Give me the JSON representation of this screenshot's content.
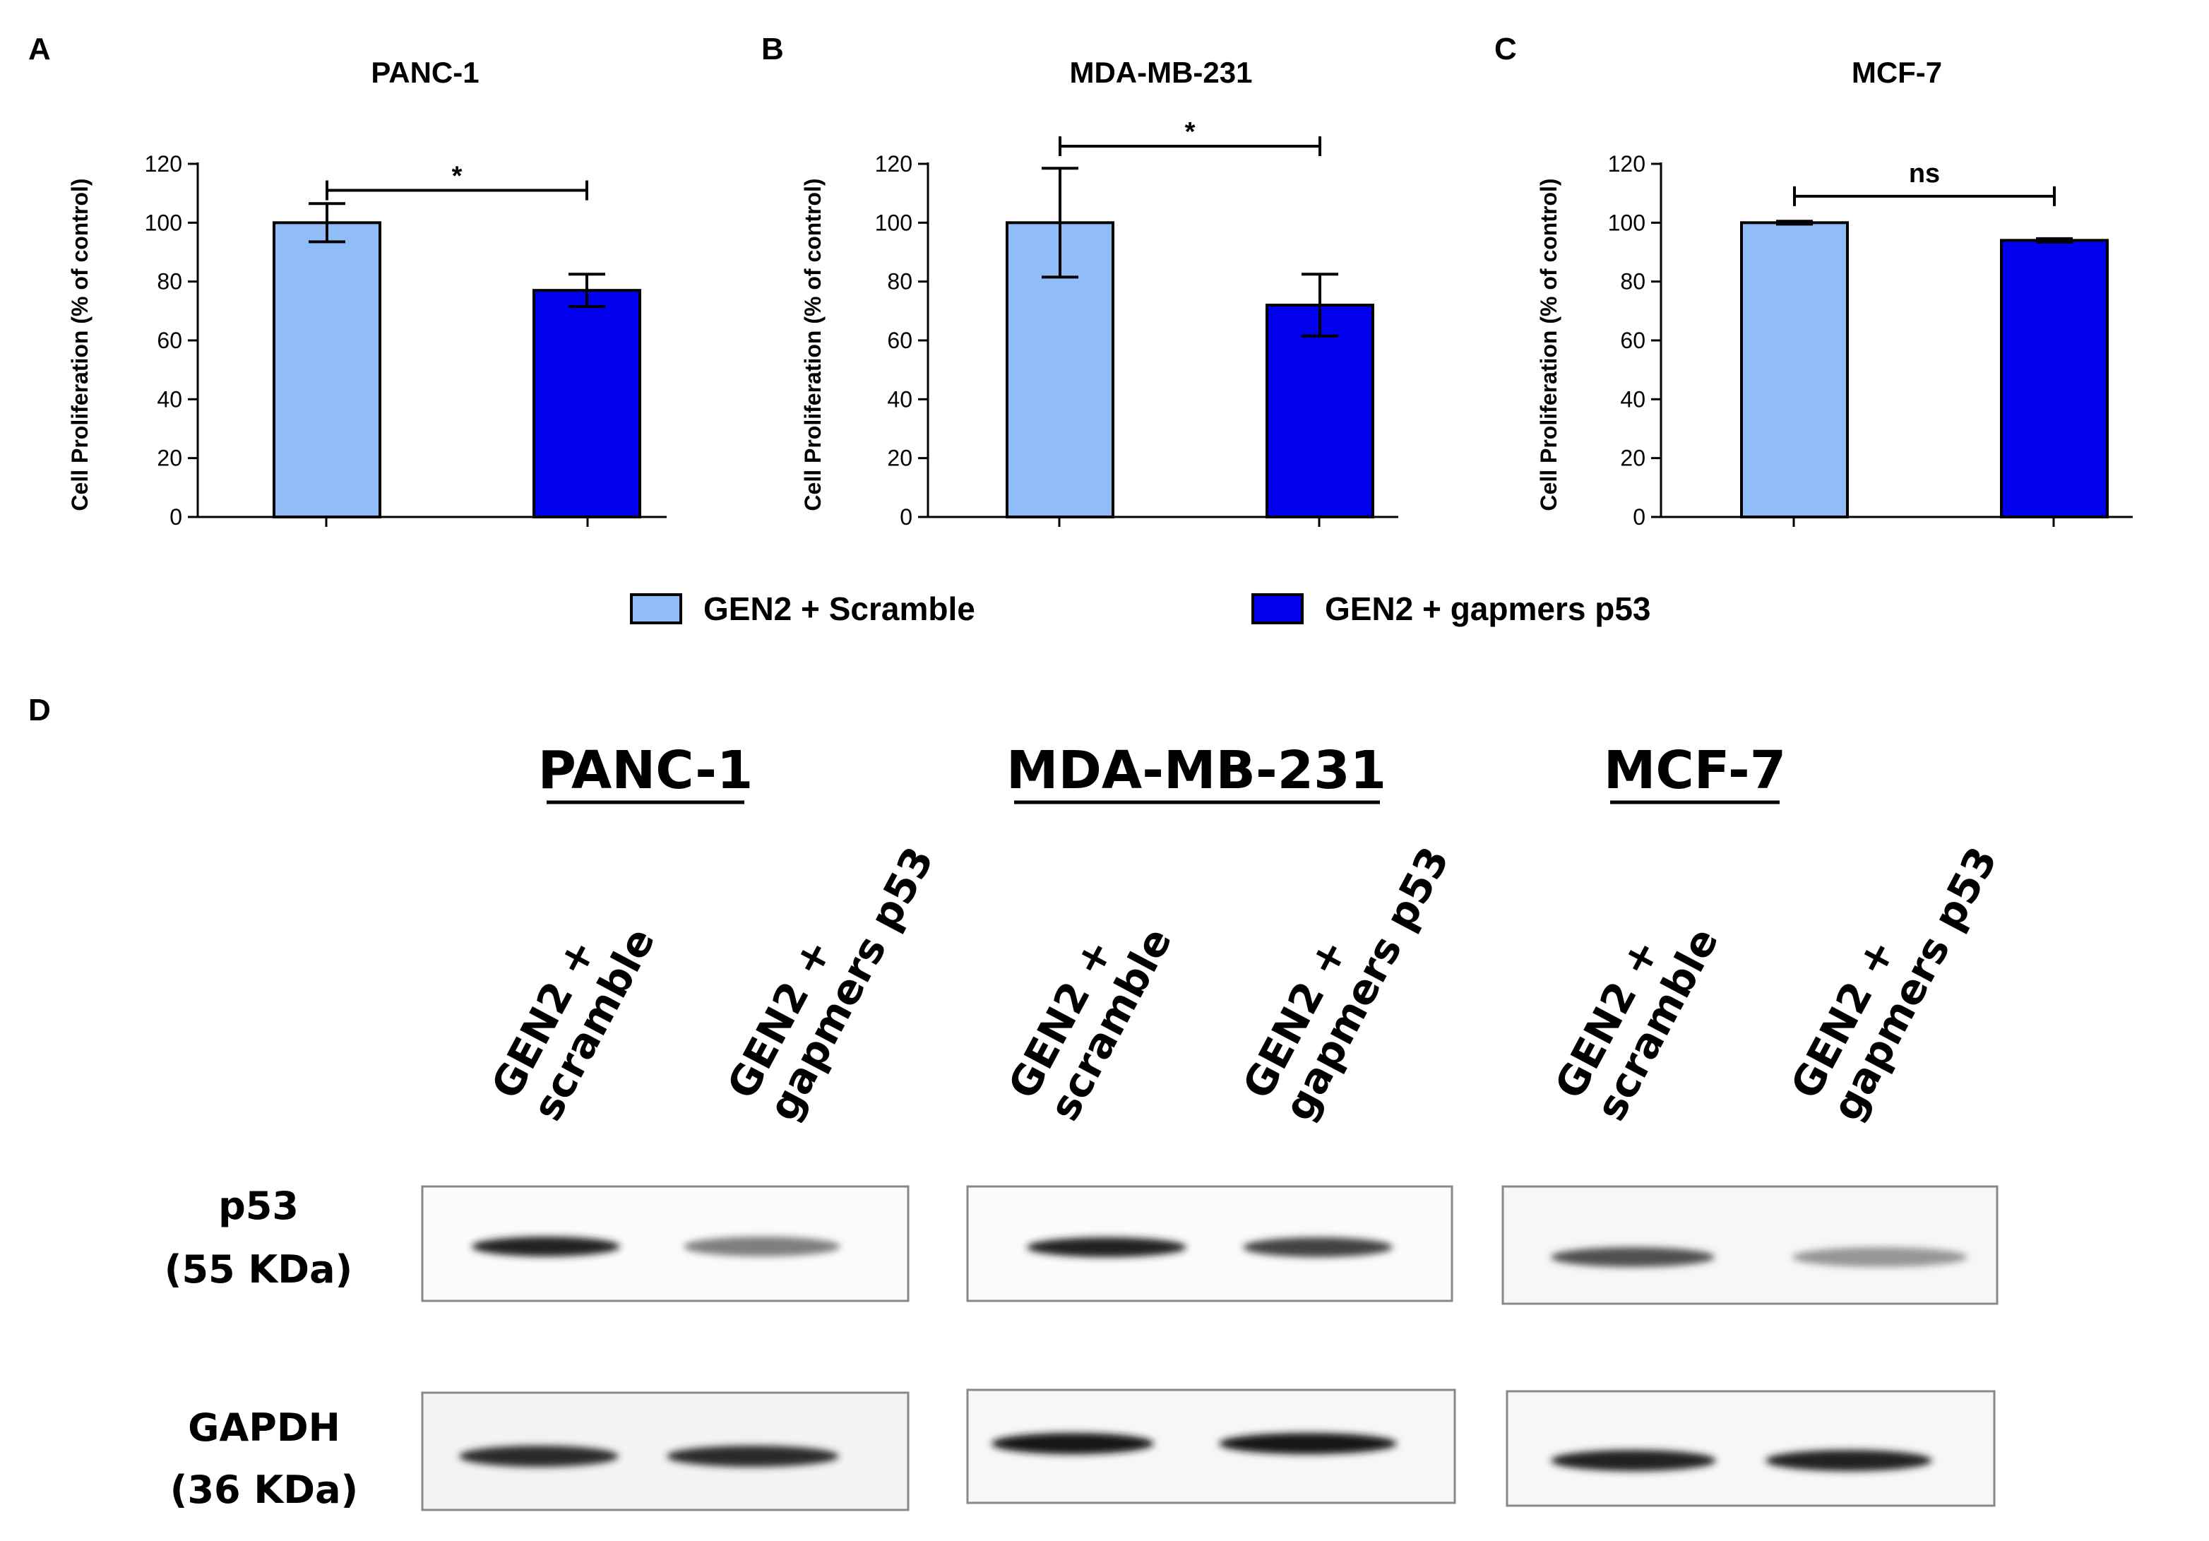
{
  "chart_data": [
    {
      "type": "bar",
      "panel": "A",
      "title": "PANC-1",
      "ylabel": "Cell Proliferation (% of control)",
      "xlabel": "",
      "ylim": [
        0,
        120
      ],
      "yticks": [
        0,
        20,
        40,
        60,
        80,
        100,
        120
      ],
      "categories": [
        "GEN2 + Scramble",
        "GEN2 + gapmers p53"
      ],
      "values": [
        100,
        77
      ],
      "errors": [
        6.5,
        5.5
      ],
      "significance": "*"
    },
    {
      "type": "bar",
      "panel": "B",
      "title": "MDA-MB-231",
      "ylabel": "Cell Proliferation (% of control)",
      "xlabel": "",
      "ylim": [
        0,
        120
      ],
      "yticks": [
        0,
        20,
        40,
        60,
        80,
        100,
        120
      ],
      "categories": [
        "GEN2 + Scramble",
        "GEN2 + gapmers p53"
      ],
      "values": [
        100,
        72
      ],
      "errors": [
        18.5,
        10.5
      ],
      "significance": "*"
    },
    {
      "type": "bar",
      "panel": "C",
      "title": "MCF-7",
      "ylabel": "Cell Proliferation (% of control)",
      "xlabel": "",
      "ylim": [
        0,
        120
      ],
      "yticks": [
        0,
        20,
        40,
        60,
        80,
        100,
        120
      ],
      "categories": [
        "GEN2 + Scramble",
        "GEN2 + gapmers p53"
      ],
      "values": [
        100,
        94
      ],
      "errors": [
        0.5,
        0.6
      ],
      "significance": "ns"
    }
  ],
  "legend": [
    {
      "label": "GEN2 + Scramble",
      "color": "#90bdf7"
    },
    {
      "label": "GEN2 + gapmers p53",
      "color": "#0000ee"
    }
  ],
  "colors": {
    "scramble": "#90bdf7",
    "gapmers": "#0000ee"
  },
  "western_blot": {
    "panel": "D",
    "cell_lines": [
      "PANC-1",
      "MDA-MB-231",
      "MCF-7"
    ],
    "lanes": [
      [
        "GEN2 +",
        "scramble"
      ],
      [
        "GEN2 +",
        "gapmers p53"
      ]
    ],
    "proteins": [
      {
        "name": "p53",
        "size": "(55 KDa)"
      },
      {
        "name": "GAPDH",
        "size": "(36 KDa)"
      }
    ],
    "band_intensity": {
      "p53": [
        [
          0.95,
          0.55
        ],
        [
          0.95,
          0.8
        ],
        [
          0.75,
          0.45
        ]
      ],
      "GAPDH": [
        [
          0.9,
          0.9
        ],
        [
          1.0,
          1.0
        ],
        [
          0.95,
          0.95
        ]
      ]
    }
  }
}
